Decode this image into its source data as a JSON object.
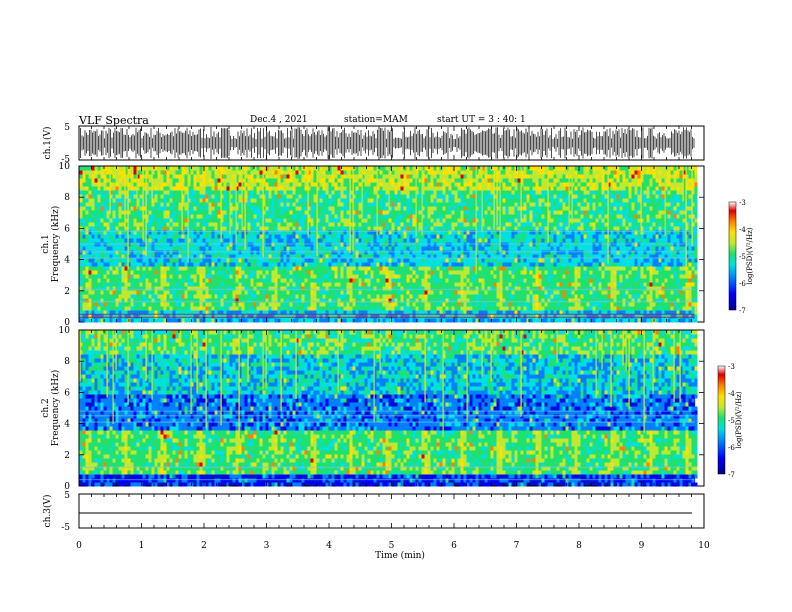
{
  "header": {
    "title": "VLF Spectra",
    "date": "Dec.4 , 2021",
    "station": "station=MAM",
    "start": "start UT =  3 : 40: 1"
  },
  "colors": {
    "spectrogram": [
      "#00008b",
      "#0000ff",
      "#0080ff",
      "#00e0e0",
      "#20e070",
      "#c0e830",
      "#ffe000",
      "#ff8000",
      "#e00000",
      "#ffffff"
    ]
  },
  "chart_data": [
    {
      "type": "line",
      "panel": "ch1-waveform",
      "ylabel": "ch.1(V)",
      "yticks": [
        "5",
        "-5"
      ],
      "ylim": [
        -5,
        5
      ],
      "xlim": [
        0,
        10
      ],
      "description_values": {
        "amplitude_range": [
          -5,
          5
        ]
      }
    },
    {
      "type": "heatmap",
      "panel": "ch1-spectrogram",
      "ylabel": "ch.1\nFrequency (kHz)",
      "yticks": [
        "0",
        "2",
        "4",
        "6",
        "8",
        "10"
      ],
      "ylim": [
        0,
        10
      ],
      "xlim": [
        0,
        9.85
      ],
      "colorbar": {
        "label": "log(PSD)(V²/Hz)",
        "ticks": [
          "-3",
          "-4",
          "-5",
          "-6",
          "-7"
        ],
        "range": [
          -7,
          -3
        ]
      }
    },
    {
      "type": "heatmap",
      "panel": "ch2-spectrogram",
      "ylabel": "ch.2\nFrequency (kHz)",
      "yticks": [
        "0",
        "2",
        "4",
        "6",
        "8",
        "10"
      ],
      "ylim": [
        0,
        10
      ],
      "xlim": [
        0,
        9.85
      ],
      "colorbar": {
        "label": "log(PSD)(V²/Hz)",
        "ticks": [
          "-3",
          "-4",
          "-5",
          "-6",
          "-7"
        ],
        "range": [
          -7,
          -3
        ]
      }
    },
    {
      "type": "line",
      "panel": "ch3-waveform",
      "ylabel": "ch.3(V)",
      "yticks": [
        "5",
        "-5"
      ],
      "ylim": [
        -5,
        5
      ],
      "xlim": [
        0,
        10
      ],
      "values": [
        [
          0,
          0
        ],
        [
          9.85,
          0
        ]
      ]
    }
  ],
  "xaxis": {
    "label": "Time (min)",
    "ticks": [
      "0",
      "1",
      "2",
      "3",
      "4",
      "5",
      "6",
      "7",
      "8",
      "9",
      "10"
    ],
    "xlim": [
      0,
      10
    ]
  }
}
